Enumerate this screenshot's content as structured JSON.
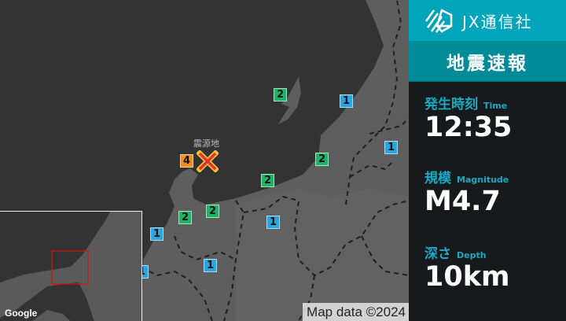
{
  "brand": {
    "name": "JX通信社",
    "icon": "jx-logo-icon",
    "color": "#00a5bc"
  },
  "title": "地震速報",
  "info": [
    {
      "label": "発生時刻",
      "sub": "Time",
      "value": "12:35"
    },
    {
      "label": "規模",
      "sub": "Magnitude",
      "value": "M4.7"
    },
    {
      "label": "深さ",
      "sub": "Depth",
      "value": "10km"
    }
  ],
  "map": {
    "epicenter_label": "震源地",
    "attribution": "Map data ©2024",
    "google": "Google",
    "intensity_colors": {
      "1": "#2aa5df",
      "2": "#1fb36a",
      "4": "#ef8c25"
    },
    "markers": [
      "2",
      "1",
      "1",
      "2",
      "2",
      "2",
      "2",
      "1",
      "1",
      "1",
      "4",
      "1"
    ]
  }
}
